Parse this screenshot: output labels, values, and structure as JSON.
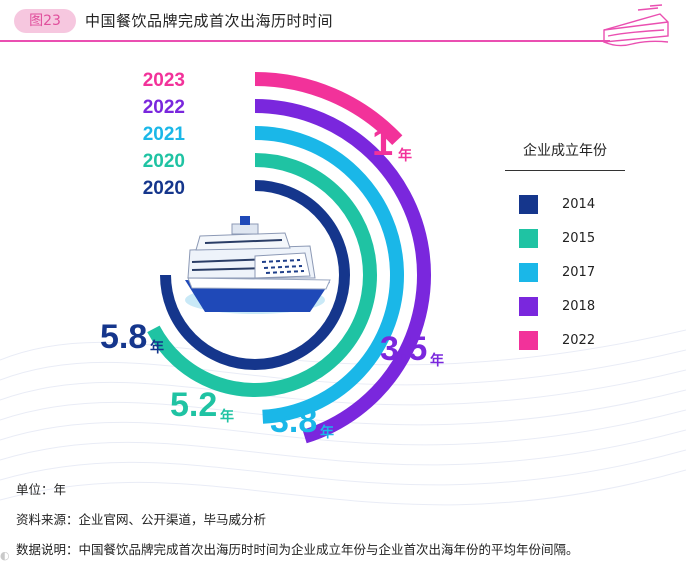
{
  "header": {
    "badge": "图23",
    "title": "中国餐饮品牌完成首次出海历时时间"
  },
  "colors": {
    "accent_pink": "#ea4fb1",
    "badge_bg": "#f6c7df",
    "series": [
      "#15368c",
      "#1fc3a3",
      "#1ab7e8",
      "#7a27dd",
      "#f2329a"
    ]
  },
  "chart_data": {
    "type": "radial-bar",
    "title": "中国餐饮品牌完成首次出海历时时间",
    "unit": "年",
    "bars": [
      {
        "legend": "2014",
        "first_overseas_year": "2020",
        "value": 5.8,
        "color": "#15368c"
      },
      {
        "legend": "2015",
        "first_overseas_year": "2020",
        "value": 5.2,
        "color": "#1fc3a3"
      },
      {
        "legend": "2017",
        "first_overseas_year": "2021",
        "value": 3.8,
        "color": "#1ab7e8"
      },
      {
        "legend": "2018",
        "first_overseas_year": "2022",
        "value": 3.5,
        "color": "#7a27dd"
      },
      {
        "legend": "2022",
        "first_overseas_year": "2023",
        "value": 1,
        "color": "#f2329a"
      }
    ],
    "value_labels": [
      "5.8",
      "5.2",
      "3.8",
      "3.5",
      "1"
    ],
    "legend_title": "企业成立年份"
  },
  "footnotes": {
    "unit_line": "单位：年",
    "source_line": "资料来源：企业官网、公开渠道，毕马威分析",
    "note_line": "数据说明：中国餐饮品牌完成首次出海历时时间为企业成立年份与企业首次出海年份的平均年份间隔。"
  }
}
